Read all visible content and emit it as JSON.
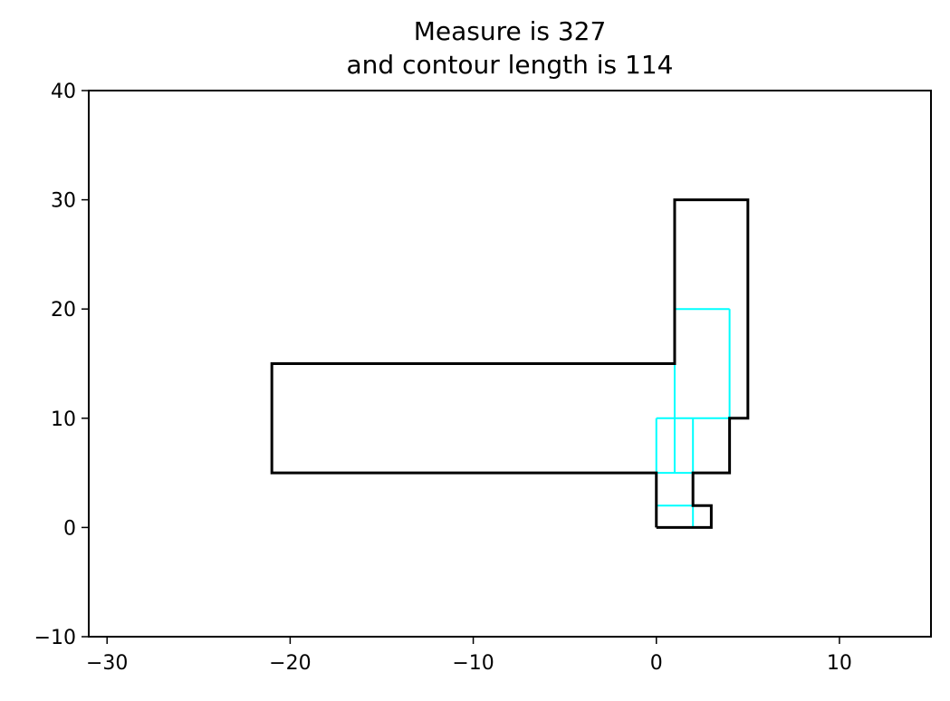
{
  "chart_data": {
    "type": "line",
    "title_lines": [
      "Measure is 327",
      "and contour length is 114"
    ],
    "xlim": [
      -31,
      15
    ],
    "ylim": [
      -10,
      40
    ],
    "x_ticks": [
      -30,
      -20,
      -10,
      0,
      10
    ],
    "y_ticks": [
      -10,
      0,
      10,
      20,
      30,
      40
    ],
    "x_tick_labels": [
      "−30",
      "−20",
      "−10",
      "0",
      "10"
    ],
    "y_tick_labels": [
      "−10",
      "0",
      "10",
      "20",
      "30",
      "40"
    ],
    "grid": false,
    "colors": {
      "contour": "#000000",
      "cells": "#00ffff",
      "axes": "#000000"
    },
    "contour": [
      [
        0,
        0
      ],
      [
        3,
        0
      ],
      [
        3,
        2
      ],
      [
        2,
        2
      ],
      [
        2,
        5
      ],
      [
        4,
        5
      ],
      [
        4,
        10
      ],
      [
        5,
        10
      ],
      [
        5,
        30
      ],
      [
        1,
        30
      ],
      [
        1,
        15
      ],
      [
        -21,
        15
      ],
      [
        -21,
        5
      ],
      [
        0,
        5
      ],
      [
        0,
        0
      ]
    ],
    "cell_segments": [
      [
        [
          0,
          2
        ],
        [
          2,
          2
        ]
      ],
      [
        [
          2,
          0
        ],
        [
          2,
          2
        ]
      ],
      [
        [
          0,
          5
        ],
        [
          0,
          10
        ]
      ],
      [
        [
          0,
          10
        ],
        [
          4,
          10
        ]
      ],
      [
        [
          0,
          5
        ],
        [
          2,
          5
        ]
      ],
      [
        [
          1,
          5
        ],
        [
          1,
          20
        ]
      ],
      [
        [
          2,
          5
        ],
        [
          2,
          10
        ]
      ],
      [
        [
          1,
          20
        ],
        [
          4,
          20
        ]
      ],
      [
        [
          4,
          10
        ],
        [
          4,
          20
        ]
      ]
    ]
  }
}
